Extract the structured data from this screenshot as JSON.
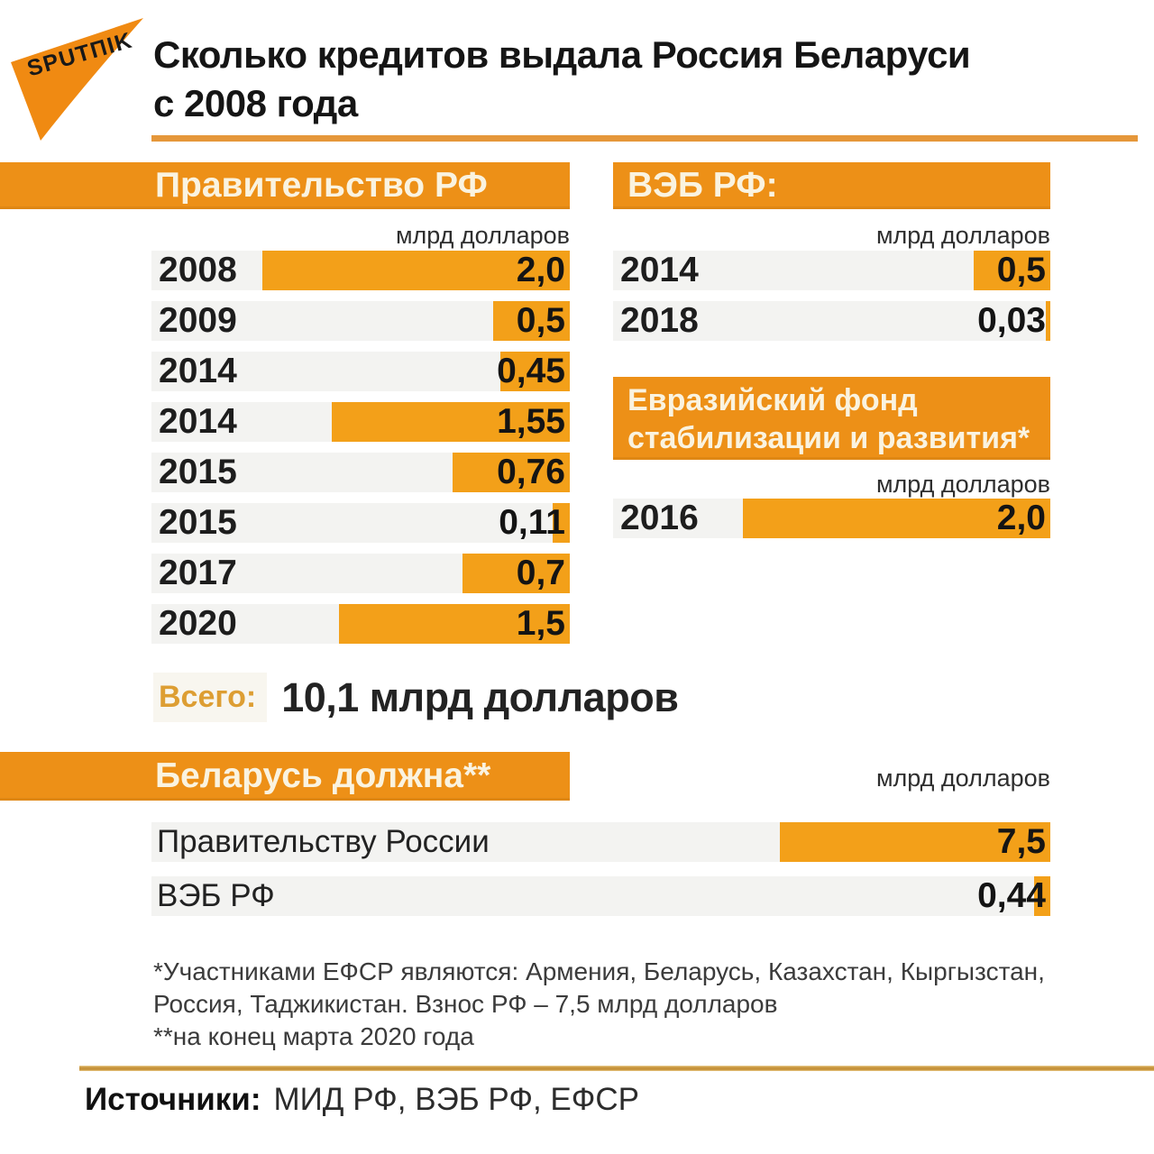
{
  "brand": {
    "logo_text": "SPUTПIK"
  },
  "title": {
    "line1": "Сколько кредитов выдала Россия Беларуси",
    "line2": "с 2008 года"
  },
  "colors": {
    "band_orange": "#ED9017",
    "bar_orange": "#F3A019",
    "logo_orange": "#F08A12",
    "track_gray": "#F3F3F1",
    "title_rule_orange": "#E5973A",
    "divider_gold": "#C6933B",
    "total_label_orange": "#DD9E33",
    "header_text_cream": "#FAF3E0"
  },
  "chart_data": [
    {
      "type": "bar",
      "orientation": "horizontal",
      "anchor": "right",
      "title": "Правительство РФ",
      "unit": "млрд долларов",
      "categories": [
        "2008",
        "2009",
        "2014",
        "2014",
        "2015",
        "2015",
        "2017",
        "2020"
      ],
      "values": [
        2.0,
        0.5,
        0.45,
        1.55,
        0.76,
        0.11,
        0.7,
        1.5
      ],
      "value_labels": [
        "2,0",
        "0,5",
        "0,45",
        "1,55",
        "0,76",
        "0,11",
        "0,7",
        "1,5"
      ],
      "grid": false,
      "legend": false
    },
    {
      "type": "bar",
      "orientation": "horizontal",
      "anchor": "right",
      "title": "ВЭБ РФ:",
      "unit": "млрд долларов",
      "categories": [
        "2014",
        "2018"
      ],
      "values": [
        0.5,
        0.03
      ],
      "value_labels": [
        "0,5",
        "0,03"
      ],
      "grid": false,
      "legend": false
    },
    {
      "type": "bar",
      "orientation": "horizontal",
      "anchor": "right",
      "title": "Евразийский фонд стабилизации и развития*",
      "title_line1": "Евразийский фонд",
      "title_line2": "стабилизации и развития*",
      "unit": "млрд долларов",
      "categories": [
        "2016"
      ],
      "values": [
        2.0
      ],
      "value_labels": [
        "2,0"
      ],
      "grid": false,
      "legend": false
    },
    {
      "type": "bar",
      "orientation": "horizontal",
      "anchor": "right",
      "title": "Беларусь должна**",
      "unit": "млрд долларов",
      "categories": [
        "Правительству России",
        "ВЭБ РФ"
      ],
      "values": [
        7.5,
        0.44
      ],
      "value_labels": [
        "7,5",
        "0,44"
      ],
      "grid": false,
      "legend": false
    }
  ],
  "total": {
    "label": "Всего:",
    "value": "10,1 млрд долларов"
  },
  "footnotes": {
    "line1": "*Участниками ЕФСР являются: Армения, Беларусь, Казахстан, Кыргызстан,",
    "line2": "Россия, Таджикистан. Взнос РФ – 7,5 млрд долларов",
    "line3": "**на конец марта 2020 года"
  },
  "sources": {
    "label": "Источники:",
    "value": "МИД РФ, ВЭБ РФ, ЕФСР"
  }
}
